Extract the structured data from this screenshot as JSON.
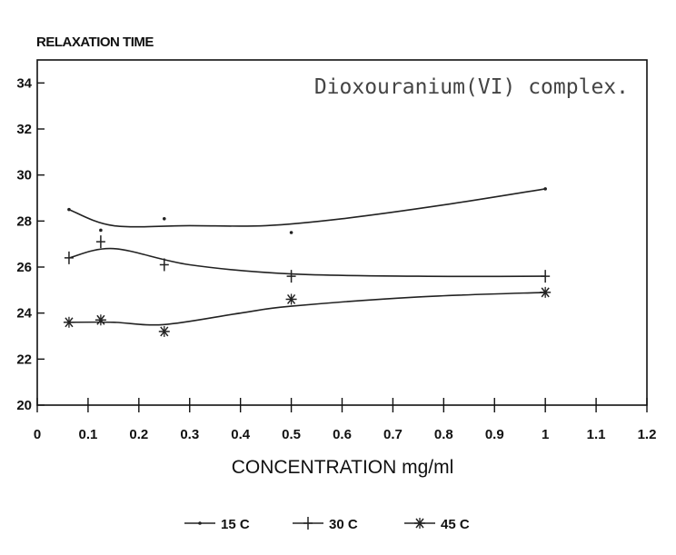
{
  "chart_data": {
    "type": "line",
    "title": "Dioxouranium(VI) complex.",
    "xlabel": "CONCENTRATION mg/ml",
    "ylabel": "RELAXATION TIME",
    "xlim": [
      0,
      1.2
    ],
    "ylim": [
      20,
      35
    ],
    "x_ticks": [
      "0",
      "0.1",
      "0.2",
      "0.3",
      "0.4",
      "0.5",
      "0.6",
      "0.7",
      "0.8",
      "0.9",
      "1",
      "1.1",
      "1.2"
    ],
    "y_ticks": [
      "20",
      "22",
      "24",
      "26",
      "28",
      "30",
      "32",
      "34"
    ],
    "legend_position": "bottom",
    "grid": false,
    "series": [
      {
        "name": "15 C",
        "marker": "dot",
        "points": [
          [
            0.0625,
            28.5
          ],
          [
            0.125,
            27.6
          ],
          [
            0.25,
            28.1
          ],
          [
            0.5,
            27.5
          ],
          [
            1.0,
            29.4
          ]
        ],
        "fit": [
          [
            0.0625,
            28.5
          ],
          [
            0.15,
            27.8
          ],
          [
            0.3,
            27.8
          ],
          [
            0.45,
            27.8
          ],
          [
            0.6,
            28.1
          ],
          [
            0.8,
            28.7
          ],
          [
            1.0,
            29.4
          ]
        ]
      },
      {
        "name": "30 C",
        "marker": "plus",
        "points": [
          [
            0.0625,
            26.4
          ],
          [
            0.125,
            27.1
          ],
          [
            0.25,
            26.1
          ],
          [
            0.5,
            25.6
          ],
          [
            1.0,
            25.6
          ]
        ],
        "fit": [
          [
            0.0625,
            26.4
          ],
          [
            0.15,
            26.8
          ],
          [
            0.3,
            26.1
          ],
          [
            0.5,
            25.7
          ],
          [
            0.75,
            25.6
          ],
          [
            1.0,
            25.6
          ]
        ]
      },
      {
        "name": "45 C",
        "marker": "star",
        "points": [
          [
            0.0625,
            23.6
          ],
          [
            0.125,
            23.7
          ],
          [
            0.25,
            23.2
          ],
          [
            0.5,
            24.6
          ],
          [
            1.0,
            24.9
          ]
        ],
        "fit": [
          [
            0.0625,
            23.6
          ],
          [
            0.15,
            23.6
          ],
          [
            0.25,
            23.5
          ],
          [
            0.4,
            24.0
          ],
          [
            0.5,
            24.3
          ],
          [
            0.75,
            24.7
          ],
          [
            1.0,
            24.9
          ]
        ]
      }
    ]
  },
  "colors": {
    "axis": "#111111",
    "line": "#222222",
    "title": "#444444"
  }
}
